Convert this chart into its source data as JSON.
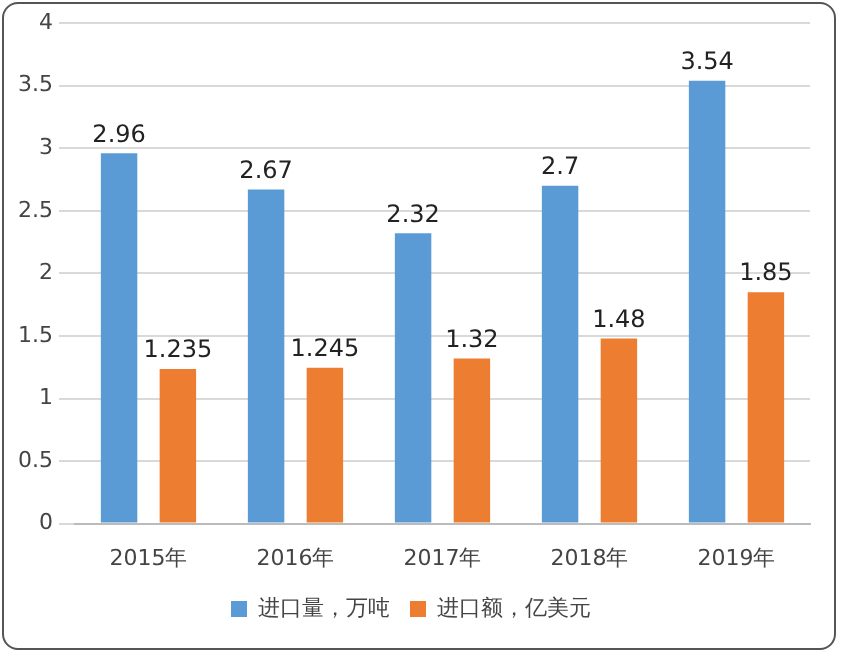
{
  "chart_data": {
    "type": "bar",
    "categories": [
      "2015年",
      "2016年",
      "2017年",
      "2018年",
      "2019年"
    ],
    "series": [
      {
        "name": "进口量，万吨",
        "color": "#5b9bd5",
        "values": [
          2.96,
          2.67,
          2.32,
          2.7,
          3.54
        ]
      },
      {
        "name": "进口额，亿美元",
        "color": "#ed7d31",
        "values": [
          1.235,
          1.245,
          1.32,
          1.48,
          1.85
        ]
      }
    ],
    "ylim": [
      0,
      4
    ],
    "yticks": [
      0,
      0.5,
      1,
      1.5,
      2,
      2.5,
      3,
      3.5,
      4
    ],
    "grid": "y",
    "legend": "bottom",
    "data_labels": true
  }
}
